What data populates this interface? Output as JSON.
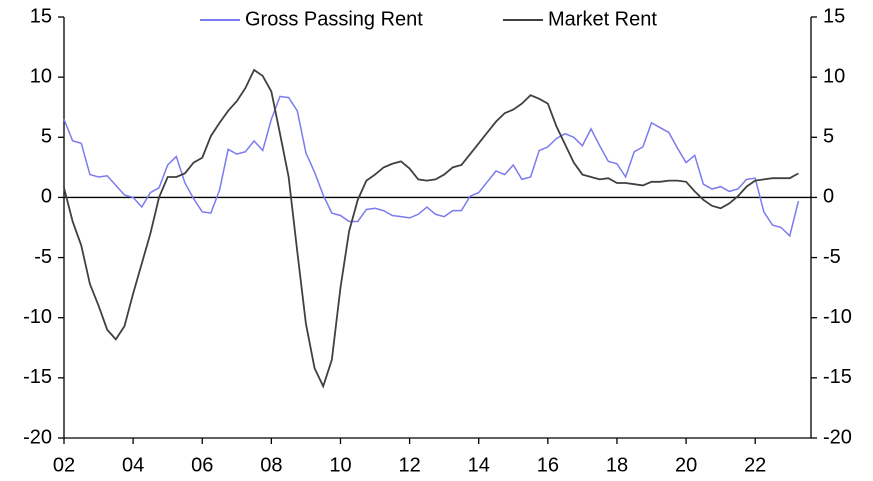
{
  "chart_data": {
    "type": "line",
    "categories": [
      "02",
      null,
      null,
      null,
      null,
      null,
      null,
      null,
      "04",
      null,
      null,
      null,
      null,
      null,
      null,
      null,
      "06",
      null,
      null,
      null,
      null,
      null,
      null,
      null,
      "08",
      null,
      null,
      null,
      null,
      null,
      null,
      null,
      "10",
      null,
      null,
      null,
      null,
      null,
      null,
      null,
      "12",
      null,
      null,
      null,
      null,
      null,
      null,
      null,
      "14",
      null,
      null,
      null,
      null,
      null,
      null,
      null,
      "16",
      null,
      null,
      null,
      null,
      null,
      null,
      null,
      "18",
      null,
      null,
      null,
      null,
      null,
      null,
      null,
      "20",
      null,
      null,
      null,
      null,
      null,
      null,
      null,
      "22",
      null,
      null,
      null,
      null,
      null
    ],
    "series": [
      {
        "name": "Gross Passing Rent",
        "color": "#7b7bef",
        "values": [
          6.5,
          4.7,
          4.5,
          1.9,
          1.7,
          1.8,
          1.0,
          0.2,
          0,
          -0.8,
          0.4,
          0.8,
          2.7,
          3.4,
          1.2,
          -0.1,
          -1.2,
          -1.3,
          0.6,
          4.0,
          3.6,
          3.8,
          4.7,
          3.9,
          6.5,
          8.4,
          8.3,
          7.2,
          3.7,
          2.1,
          0.2,
          -1.3,
          -1.5,
          -2.0,
          -2.0,
          -1.0,
          -0.9,
          -1.1,
          -1.5,
          -1.6,
          -1.7,
          -1.4,
          -0.8,
          -1.4,
          -1.6,
          -1.1,
          -1.1,
          0.1,
          0.4,
          1.3,
          2.2,
          1.9,
          2.7,
          1.5,
          1.7,
          3.9,
          4.2,
          4.9,
          5.3,
          5.0,
          4.3,
          5.7,
          4.3,
          3.0,
          2.8,
          1.7,
          3.8,
          4.2,
          6.2,
          5.8,
          5.4,
          4.1,
          2.9,
          3.5,
          1.1,
          0.7,
          0.9,
          0.5,
          0.7,
          1.5,
          1.6,
          -1.2,
          -2.3,
          -2.5,
          -3.2,
          -0.3
        ]
      },
      {
        "name": "Market Rent",
        "color": "#404040",
        "values": [
          0.8,
          -2.0,
          -4.0,
          -7.2,
          -9.0,
          -11.0,
          -11.8,
          -10.7,
          -8.0,
          -5.5,
          -3.0,
          0.0,
          1.7,
          1.7,
          2.0,
          2.9,
          3.3,
          5.1,
          6.2,
          7.2,
          8.0,
          9.1,
          10.6,
          10.1,
          8.8,
          5.3,
          1.7,
          -4.5,
          -10.5,
          -14.2,
          -15.7,
          -13.5,
          -7.5,
          -2.8,
          -0.2,
          1.4,
          1.9,
          2.5,
          2.8,
          3.0,
          2.4,
          1.5,
          1.4,
          1.5,
          1.9,
          2.5,
          2.7,
          3.6,
          4.5,
          5.4,
          6.3,
          7.0,
          7.3,
          7.8,
          8.5,
          8.2,
          7.8,
          5.9,
          4.4,
          2.9,
          1.9,
          1.7,
          1.5,
          1.6,
          1.2,
          1.2,
          1.1,
          1.0,
          1.3,
          1.3,
          1.4,
          1.4,
          1.3,
          0.5,
          -0.2,
          -0.7,
          -0.9,
          -0.5,
          0.1,
          0.9,
          1.4,
          1.5,
          1.6,
          1.6,
          1.6,
          2.0
        ]
      }
    ],
    "ylim": [
      -20,
      15
    ],
    "yticks": [
      -20,
      -15,
      -10,
      -5,
      0,
      5,
      10,
      15
    ],
    "y2lim": [
      -20,
      15
    ],
    "y2ticks": [
      -20,
      -15,
      -10,
      -5,
      0,
      5,
      10,
      15
    ],
    "legend": "top",
    "grid": false
  }
}
